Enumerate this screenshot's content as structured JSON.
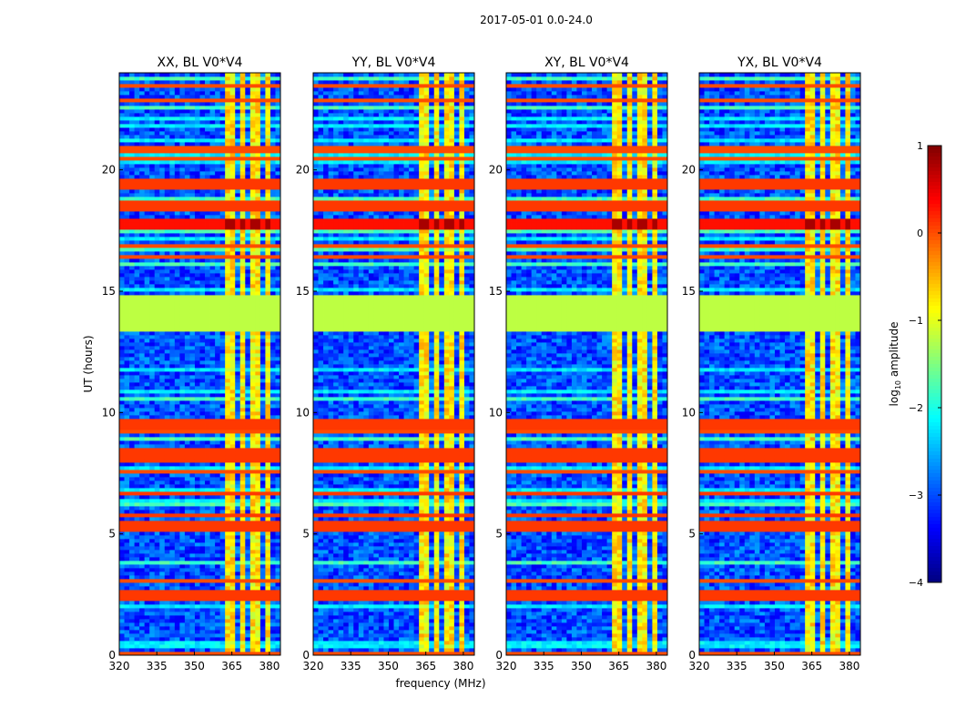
{
  "chart_data": {
    "type": "heatmap",
    "suptitle": "2017-05-01 0.0-24.0",
    "xlabel": "frequency (MHz)",
    "ylabel": "UT (hours)",
    "xlim": [
      320,
      384.4
    ],
    "ylim": [
      0,
      24
    ],
    "xticks": [
      "320",
      "335",
      "350",
      "365",
      "380"
    ],
    "xtick_values": [
      320,
      335,
      350,
      365,
      380
    ],
    "yticks": [
      "0",
      "5",
      "10",
      "15",
      "20"
    ],
    "ytick_values": [
      0,
      5,
      10,
      15,
      20
    ],
    "panels": [
      {
        "title": "XX, BL V0*V4"
      },
      {
        "title": "YY, BL V0*V4"
      },
      {
        "title": "XY, BL V0*V4"
      },
      {
        "title": "YX, BL V0*V4"
      }
    ],
    "colorbar": {
      "label": "log",
      "label_sub": "10",
      "label_rest": " amplitude",
      "range": [
        -4,
        1
      ],
      "ticks": [
        "1",
        "0",
        "−1",
        "−2",
        "−3",
        "−4"
      ],
      "tick_values": [
        1,
        0,
        -1,
        -2,
        -3,
        -4
      ],
      "colormap": "jet"
    },
    "background_level": -3.0,
    "rfi_frequency_band_MHz": [
      363,
      383
    ],
    "rfi_band_level": -0.8,
    "rfi_gaps_MHz": [
      367.5,
      372,
      377,
      381.5
    ],
    "saturated_time_bands_hours": [
      {
        "from": 13.4,
        "to": 14.8,
        "level": -1.2
      },
      {
        "from": 2.3,
        "to": 2.7,
        "level": 0.1
      },
      {
        "from": 5.15,
        "to": 5.5,
        "level": 0.1
      },
      {
        "from": 5.7,
        "to": 5.85,
        "level": 0.1
      },
      {
        "from": 6.55,
        "to": 6.8,
        "level": 0.1
      },
      {
        "from": 7.9,
        "to": 8.6,
        "level": 0.1
      },
      {
        "from": 9.3,
        "to": 9.7,
        "level": 0.1
      },
      {
        "from": 17.6,
        "to": 18.0,
        "level": 0.3
      },
      {
        "from": 18.3,
        "to": 18.8,
        "level": 0.1
      },
      {
        "from": 19.15,
        "to": 19.6,
        "level": 0.1
      }
    ]
  }
}
